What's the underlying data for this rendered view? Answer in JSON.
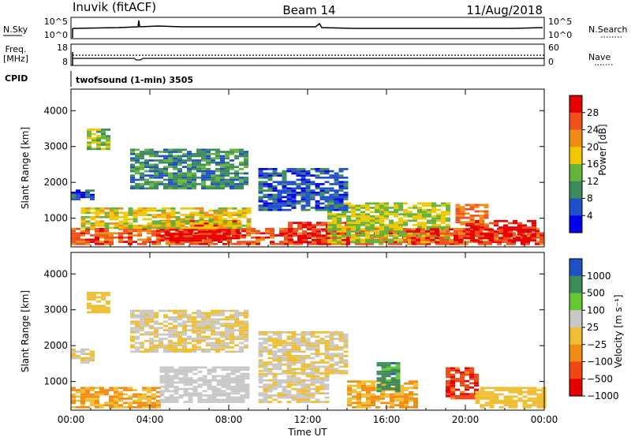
{
  "header": {
    "station": "Inuvik (fitACF)",
    "beam": "Beam 14",
    "date": "11/Aug/2018"
  },
  "nsky_panel": {
    "left_label": "N.Sky",
    "right_label": "N.Search",
    "left_ticks": [
      "10^5",
      "10^0"
    ],
    "right_ticks": [
      "10^5",
      "10^0"
    ]
  },
  "freq_panel": {
    "left_label_top": "Freq.",
    "left_label_bottom": "[MHz]",
    "right_label": "Nave",
    "left_ticks": [
      "18",
      "8"
    ],
    "right_ticks": [
      "60",
      "0"
    ]
  },
  "cpid_panel": {
    "left_label": "CPID",
    "text": "twofsound (1-min) 3505"
  },
  "colors": {
    "power": [
      "#0000ee",
      "#2050c8",
      "#3c8c5a",
      "#64b43c",
      "#f0c800",
      "#f08c14",
      "#f0501e",
      "#e60000"
    ],
    "velocity": [
      "#e60000",
      "#f04614",
      "#f08c14",
      "#f0be32",
      "#c8c8c8",
      "#64c832",
      "#3c8c5a",
      "#2050c8"
    ]
  },
  "chart_data": [
    {
      "type": "heatmap",
      "title": "Power",
      "ylabel": "Slant Range [km]",
      "ylim": [
        200,
        4600
      ],
      "yticks": [
        "4000",
        "3000",
        "2000",
        "1000"
      ],
      "xticks": [
        "00:00",
        "04:00",
        "08:00",
        "12:00",
        "16:00",
        "20:00",
        "00:00"
      ],
      "colorbar_label": "Power [dB]",
      "colorbar_ticks": [
        "28",
        "24",
        "20",
        "16",
        "12",
        "8",
        "4"
      ],
      "vmin": 0,
      "vmax": 32,
      "regions": [
        {
          "t0": 0.0,
          "t1": 23.9,
          "r0": 250,
          "r1": 700,
          "v": 26
        },
        {
          "t0": 4.5,
          "t1": 8.5,
          "r0": 350,
          "r1": 900,
          "v": 30
        },
        {
          "t0": 0.5,
          "t1": 9.0,
          "r0": 700,
          "r1": 1300,
          "v": 18
        },
        {
          "t0": 0.0,
          "t1": 1.0,
          "r0": 1500,
          "r1": 1800,
          "v": 6
        },
        {
          "t0": 3.0,
          "t1": 9.0,
          "r0": 1800,
          "r1": 2900,
          "v": 10
        },
        {
          "t0": 11.0,
          "t1": 14.0,
          "r0": 300,
          "r1": 900,
          "v": 28
        },
        {
          "t0": 13.0,
          "t1": 19.0,
          "r0": 300,
          "r1": 1400,
          "v": 16
        },
        {
          "t0": 17.0,
          "t1": 20.0,
          "r0": 300,
          "r1": 700,
          "v": 26
        },
        {
          "t0": 20.0,
          "t1": 23.5,
          "r0": 350,
          "r1": 900,
          "v": 30
        },
        {
          "t0": 19.5,
          "t1": 21.0,
          "r0": 800,
          "r1": 1400,
          "v": 24
        },
        {
          "t0": 0.8,
          "t1": 2.0,
          "r0": 2900,
          "r1": 3500,
          "v": 14
        },
        {
          "t0": 9.5,
          "t1": 14.0,
          "r0": 1200,
          "r1": 2400,
          "v": 6
        }
      ]
    },
    {
      "type": "heatmap",
      "title": "Velocity",
      "ylabel": "Slant Range [km]",
      "xlabel": "Time UT",
      "ylim": [
        200,
        4600
      ],
      "yticks": [
        "4000",
        "3000",
        "2000",
        "1000"
      ],
      "xticks": [
        "00:00",
        "04:00",
        "08:00",
        "12:00",
        "16:00",
        "20:00",
        "00:00"
      ],
      "colorbar_label": "Velocity [m s⁻¹]",
      "colorbar_ticks": [
        "1000",
        "500",
        "100",
        "25",
        "−25",
        "−100",
        "−500",
        "−1000"
      ],
      "vmin": -1200,
      "vmax": 1200,
      "regions": [
        {
          "t0": 0.0,
          "t1": 4.5,
          "r0": 250,
          "r1": 800,
          "v": -300
        },
        {
          "t0": 4.5,
          "t1": 9.0,
          "r0": 400,
          "r1": 1400,
          "v": 60
        },
        {
          "t0": 3.0,
          "t1": 9.0,
          "r0": 1800,
          "r1": 3000,
          "v": 0
        },
        {
          "t0": 0.0,
          "t1": 1.0,
          "r0": 1500,
          "r1": 1900,
          "v": 0
        },
        {
          "t0": 9.5,
          "t1": 13.0,
          "r0": 400,
          "r1": 1200,
          "v": 0
        },
        {
          "t0": 14.0,
          "t1": 17.5,
          "r0": 250,
          "r1": 1000,
          "v": -300
        },
        {
          "t0": 15.5,
          "t1": 16.5,
          "r0": 700,
          "r1": 1500,
          "v": 700
        },
        {
          "t0": 19.0,
          "t1": 20.5,
          "r0": 500,
          "r1": 1400,
          "v": -800
        },
        {
          "t0": 20.5,
          "t1": 24.0,
          "r0": 250,
          "r1": 800,
          "v": -60
        },
        {
          "t0": 0.8,
          "t1": 2.0,
          "r0": 2900,
          "r1": 3500,
          "v": -150
        },
        {
          "t0": 9.5,
          "t1": 14.0,
          "r0": 1200,
          "r1": 2400,
          "v": 0
        }
      ]
    }
  ]
}
